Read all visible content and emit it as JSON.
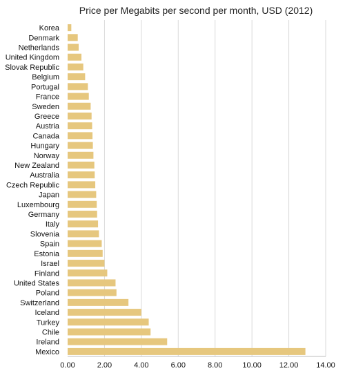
{
  "chart_data": {
    "type": "bar",
    "orientation": "horizontal",
    "title": "Price per Megabits per second per month, USD (2012)",
    "xlabel": "",
    "ylabel": "",
    "xlim": [
      0,
      14
    ],
    "x_ticks": [
      "0.00",
      "2.00",
      "4.00",
      "6.00",
      "8.00",
      "10.00",
      "12.00",
      "14.00"
    ],
    "grid": true,
    "bar_color": "#e6c77e",
    "categories": [
      "Korea",
      "Denmark",
      "Netherlands",
      "United Kingdom",
      "Slovak Republic",
      "Belgium",
      "Portugal",
      "France",
      "Sweden",
      "Greece",
      "Austria",
      "Canada",
      "Hungary",
      "Norway",
      "New Zealand",
      "Australia",
      "Czech Republic",
      "Japan",
      "Luxembourg",
      "Germany",
      "Italy",
      "Slovenia",
      "Spain",
      "Estonia",
      "Israel",
      "Finland",
      "United States",
      "Poland",
      "Switzerland",
      "Iceland",
      "Turkey",
      "Chile",
      "Ireland",
      "Mexico"
    ],
    "values": [
      0.2,
      0.55,
      0.6,
      0.75,
      0.85,
      0.95,
      1.1,
      1.15,
      1.25,
      1.3,
      1.33,
      1.35,
      1.37,
      1.4,
      1.45,
      1.47,
      1.5,
      1.55,
      1.58,
      1.6,
      1.65,
      1.7,
      1.85,
      1.9,
      2.0,
      2.15,
      2.6,
      2.65,
      3.3,
      4.0,
      4.4,
      4.5,
      5.4,
      12.9
    ]
  }
}
